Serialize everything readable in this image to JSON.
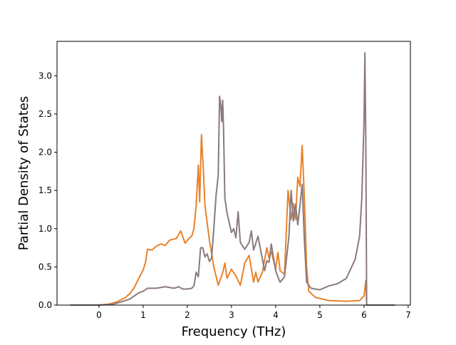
{
  "chart_data": {
    "type": "line",
    "title": "",
    "xlabel": "Frequency (THz)",
    "ylabel": "Partial Density of States",
    "xlim": [
      -0.95,
      7.05
    ],
    "ylim": [
      0.0,
      3.45
    ],
    "xticks": [
      0,
      1,
      2,
      3,
      4,
      5,
      6,
      7
    ],
    "xtick_labels": [
      "0",
      "1",
      "2",
      "3",
      "4",
      "5",
      "6",
      "7"
    ],
    "yticks": [
      0.0,
      0.5,
      1.0,
      1.5,
      2.0,
      2.5,
      3.0
    ],
    "ytick_labels": [
      "0.0",
      "0.5",
      "1.0",
      "1.5",
      "2.0",
      "2.5",
      "3.0"
    ],
    "grid": false,
    "legend": "none",
    "series": [
      {
        "color": "#e8822a",
        "points": [
          [
            -0.65,
            0
          ],
          [
            0,
            0
          ],
          [
            0.2,
            0.01
          ],
          [
            0.4,
            0.04
          ],
          [
            0.6,
            0.1
          ],
          [
            0.7,
            0.15
          ],
          [
            0.8,
            0.23
          ],
          [
            0.9,
            0.35
          ],
          [
            1.0,
            0.46
          ],
          [
            1.05,
            0.55
          ],
          [
            1.1,
            0.73
          ],
          [
            1.2,
            0.72
          ],
          [
            1.3,
            0.77
          ],
          [
            1.4,
            0.8
          ],
          [
            1.5,
            0.78
          ],
          [
            1.6,
            0.85
          ],
          [
            1.75,
            0.87
          ],
          [
            1.85,
            0.97
          ],
          [
            1.95,
            0.81
          ],
          [
            2.05,
            0.88
          ],
          [
            2.1,
            0.9
          ],
          [
            2.15,
            1.0
          ],
          [
            2.2,
            1.3
          ],
          [
            2.25,
            1.83
          ],
          [
            2.28,
            1.35
          ],
          [
            2.32,
            2.23
          ],
          [
            2.36,
            1.8
          ],
          [
            2.4,
            1.3
          ],
          [
            2.5,
            0.85
          ],
          [
            2.6,
            0.5
          ],
          [
            2.7,
            0.26
          ],
          [
            2.8,
            0.42
          ],
          [
            2.85,
            0.55
          ],
          [
            2.9,
            0.35
          ],
          [
            3.0,
            0.47
          ],
          [
            3.1,
            0.38
          ],
          [
            3.2,
            0.26
          ],
          [
            3.25,
            0.4
          ],
          [
            3.3,
            0.55
          ],
          [
            3.4,
            0.65
          ],
          [
            3.5,
            0.3
          ],
          [
            3.55,
            0.43
          ],
          [
            3.6,
            0.3
          ],
          [
            3.7,
            0.43
          ],
          [
            3.8,
            0.75
          ],
          [
            3.85,
            0.62
          ],
          [
            3.9,
            0.7
          ],
          [
            4.0,
            0.47
          ],
          [
            4.05,
            0.69
          ],
          [
            4.1,
            0.45
          ],
          [
            4.2,
            0.4
          ],
          [
            4.28,
            1.5
          ],
          [
            4.35,
            1.12
          ],
          [
            4.4,
            1.33
          ],
          [
            4.45,
            1.12
          ],
          [
            4.5,
            1.67
          ],
          [
            4.55,
            1.55
          ],
          [
            4.6,
            2.09
          ],
          [
            4.65,
            1.4
          ],
          [
            4.7,
            0.5
          ],
          [
            4.75,
            0.18
          ],
          [
            4.9,
            0.1
          ],
          [
            5.2,
            0.06
          ],
          [
            5.6,
            0.05
          ],
          [
            5.9,
            0.06
          ],
          [
            6.0,
            0.12
          ],
          [
            6.04,
            0.32
          ],
          [
            6.06,
            0.0
          ],
          [
            6.7,
            0.0
          ]
        ]
      },
      {
        "color": "#8a7a7e",
        "points": [
          [
            -0.65,
            0
          ],
          [
            0,
            0
          ],
          [
            0.3,
            0.01
          ],
          [
            0.5,
            0.04
          ],
          [
            0.7,
            0.08
          ],
          [
            0.8,
            0.12
          ],
          [
            0.9,
            0.16
          ],
          [
            1.0,
            0.18
          ],
          [
            1.1,
            0.22
          ],
          [
            1.3,
            0.22
          ],
          [
            1.5,
            0.24
          ],
          [
            1.7,
            0.22
          ],
          [
            1.8,
            0.24
          ],
          [
            1.9,
            0.21
          ],
          [
            2.0,
            0.21
          ],
          [
            2.1,
            0.22
          ],
          [
            2.15,
            0.25
          ],
          [
            2.2,
            0.43
          ],
          [
            2.25,
            0.37
          ],
          [
            2.3,
            0.75
          ],
          [
            2.35,
            0.75
          ],
          [
            2.4,
            0.63
          ],
          [
            2.45,
            0.67
          ],
          [
            2.5,
            0.57
          ],
          [
            2.55,
            0.62
          ],
          [
            2.6,
            1.0
          ],
          [
            2.65,
            1.43
          ],
          [
            2.7,
            1.7
          ],
          [
            2.73,
            2.73
          ],
          [
            2.76,
            2.6
          ],
          [
            2.78,
            2.4
          ],
          [
            2.8,
            2.68
          ],
          [
            2.82,
            2.3
          ],
          [
            2.85,
            1.4
          ],
          [
            2.9,
            1.2
          ],
          [
            3.0,
            0.95
          ],
          [
            3.05,
            1.0
          ],
          [
            3.1,
            0.88
          ],
          [
            3.15,
            1.22
          ],
          [
            3.2,
            0.82
          ],
          [
            3.3,
            0.73
          ],
          [
            3.4,
            0.82
          ],
          [
            3.45,
            0.97
          ],
          [
            3.5,
            0.72
          ],
          [
            3.6,
            0.9
          ],
          [
            3.65,
            0.75
          ],
          [
            3.75,
            0.45
          ],
          [
            3.8,
            0.58
          ],
          [
            3.85,
            0.56
          ],
          [
            3.9,
            0.8
          ],
          [
            4.0,
            0.45
          ],
          [
            4.05,
            0.37
          ],
          [
            4.1,
            0.3
          ],
          [
            4.2,
            0.37
          ],
          [
            4.3,
            0.9
          ],
          [
            4.35,
            1.5
          ],
          [
            4.4,
            1.1
          ],
          [
            4.45,
            1.32
          ],
          [
            4.5,
            1.05
          ],
          [
            4.55,
            1.3
          ],
          [
            4.6,
            1.58
          ],
          [
            4.65,
            0.85
          ],
          [
            4.7,
            0.3
          ],
          [
            4.8,
            0.22
          ],
          [
            5.0,
            0.2
          ],
          [
            5.2,
            0.25
          ],
          [
            5.4,
            0.28
          ],
          [
            5.6,
            0.35
          ],
          [
            5.8,
            0.6
          ],
          [
            5.9,
            0.9
          ],
          [
            5.95,
            1.4
          ],
          [
            6.0,
            2.4
          ],
          [
            6.02,
            3.3
          ],
          [
            6.04,
            2.2
          ],
          [
            6.06,
            0.0
          ],
          [
            6.7,
            0.0
          ]
        ]
      }
    ]
  }
}
